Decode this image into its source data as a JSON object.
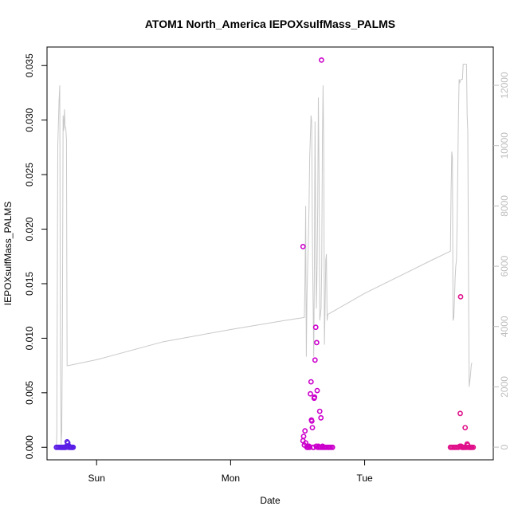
{
  "chart_data": {
    "type": "scatter",
    "title": "ATOM1 North_America IEPOXsulfMass_PALMS",
    "xlabel": "Date",
    "ylabel": "IEPOXsulfMass_PALMS",
    "x_ticks": [
      {
        "x": 1.0,
        "label": "Sun"
      },
      {
        "x": 2.0,
        "label": "Mon"
      },
      {
        "x": 3.0,
        "label": "Tue"
      }
    ],
    "xlim": [
      0.63,
      3.96
    ],
    "ylim": [
      -0.00115,
      0.0367
    ],
    "y_ticks": [
      0.0,
      0.005,
      0.01,
      0.015,
      0.02,
      0.025,
      0.03,
      0.035
    ],
    "y_tick_labels": [
      "0.000",
      "0.005",
      "0.010",
      "0.015",
      "0.020",
      "0.025",
      "0.030",
      "0.035"
    ],
    "y2lim": [
      -420,
      13270
    ],
    "y2_ticks": [
      0,
      2000,
      4000,
      6000,
      8000,
      10000,
      12000
    ],
    "y2_tick_labels": [
      "0",
      "2000",
      "4000",
      "6000",
      "8000",
      "10000",
      "12000"
    ],
    "grid": false,
    "series": [
      {
        "color": "#5a1ee6",
        "points": [
          [
            0.7,
            0
          ],
          [
            0.71,
            0
          ],
          [
            0.72,
            0
          ],
          [
            0.73,
            0
          ],
          [
            0.735,
            0
          ],
          [
            0.74,
            0
          ],
          [
            0.745,
            0
          ],
          [
            0.75,
            0
          ],
          [
            0.755,
            0
          ],
          [
            0.76,
            0
          ],
          [
            0.765,
            0
          ],
          [
            0.77,
            0
          ],
          [
            0.775,
            0.0001
          ],
          [
            0.78,
            0.0005
          ],
          [
            0.785,
            0.0004
          ],
          [
            0.79,
            0
          ],
          [
            0.795,
            0.0001
          ],
          [
            0.8,
            0
          ],
          [
            0.805,
            0
          ],
          [
            0.81,
            0
          ],
          [
            0.815,
            0
          ],
          [
            0.82,
            0
          ],
          [
            0.825,
            0
          ]
        ]
      },
      {
        "color": "#cc00cc",
        "points": [
          [
            2.54,
            0.0184
          ],
          [
            2.54,
            0.0006
          ],
          [
            2.545,
            0.001
          ],
          [
            2.55,
            0.0002
          ],
          [
            2.555,
            0.0015
          ],
          [
            2.56,
            0.0004
          ],
          [
            2.57,
            0
          ],
          [
            2.575,
            0
          ],
          [
            2.58,
            0
          ],
          [
            2.585,
            0.0001
          ],
          [
            2.59,
            0
          ],
          [
            2.595,
            0.0049
          ],
          [
            2.6,
            0.006
          ],
          [
            2.603,
            0.0025
          ],
          [
            2.606,
            0.0024
          ],
          [
            2.61,
            0.0018
          ],
          [
            2.615,
            0
          ],
          [
            2.62,
            0
          ],
          [
            2.623,
            0.0045
          ],
          [
            2.626,
            0.0046
          ],
          [
            2.63,
            0.008
          ],
          [
            2.635,
            0.011
          ],
          [
            2.638,
            0.0001
          ],
          [
            2.642,
            0.0096
          ],
          [
            2.646,
            0.0052
          ],
          [
            2.65,
            0
          ],
          [
            2.655,
            0.0001
          ],
          [
            2.66,
            0
          ],
          [
            2.665,
            0.0033
          ],
          [
            2.67,
            0
          ],
          [
            2.674,
            0.0027
          ],
          [
            2.678,
            0.0355
          ],
          [
            2.682,
            0
          ],
          [
            2.686,
            0.0001
          ],
          [
            2.69,
            0
          ],
          [
            2.7,
            0
          ],
          [
            2.71,
            0
          ],
          [
            2.72,
            0
          ],
          [
            2.73,
            0
          ],
          [
            2.74,
            0
          ],
          [
            2.75,
            0
          ],
          [
            2.76,
            0
          ]
        ]
      },
      {
        "color": "#e0108a",
        "points": [
          [
            3.64,
            0
          ],
          [
            3.65,
            0
          ],
          [
            3.66,
            0
          ],
          [
            3.67,
            0
          ],
          [
            3.68,
            0
          ],
          [
            3.69,
            0
          ],
          [
            3.7,
            0
          ],
          [
            3.71,
            0.0001
          ],
          [
            3.713,
            0.0031
          ],
          [
            3.716,
            0.0138
          ],
          [
            3.72,
            0.0001
          ],
          [
            3.725,
            0
          ],
          [
            3.73,
            0
          ],
          [
            3.735,
            0
          ],
          [
            3.74,
            0
          ],
          [
            3.745,
            0
          ],
          [
            3.75,
            0.0018
          ],
          [
            3.755,
            0
          ],
          [
            3.76,
            0
          ],
          [
            3.765,
            0.0003
          ],
          [
            3.77,
            0.0002
          ],
          [
            3.775,
            0
          ],
          [
            3.78,
            0
          ],
          [
            3.785,
            0
          ],
          [
            3.79,
            0
          ],
          [
            3.795,
            0
          ],
          [
            3.8,
            0
          ],
          [
            3.81,
            0
          ]
        ]
      }
    ],
    "line_series": {
      "color": "#c8c8c8",
      "axis": "right",
      "points": [
        [
          0.7,
          0
        ],
        [
          0.703,
          500
        ],
        [
          0.71,
          10000
        ],
        [
          0.72,
          11500
        ],
        [
          0.725,
          12000
        ],
        [
          0.73,
          3000
        ],
        [
          0.735,
          100
        ],
        [
          0.74,
          500
        ],
        [
          0.745,
          4000
        ],
        [
          0.75,
          11000
        ],
        [
          0.755,
          10500
        ],
        [
          0.76,
          11200
        ],
        [
          0.765,
          10600
        ],
        [
          0.77,
          10600
        ],
        [
          0.775,
          10200
        ],
        [
          0.78,
          2700
        ],
        [
          0.785,
          2700
        ],
        [
          1.0,
          2900
        ],
        [
          1.5,
          3500
        ],
        [
          2.0,
          3900
        ],
        [
          2.4,
          4200
        ],
        [
          2.55,
          4300
        ],
        [
          2.555,
          5500
        ],
        [
          2.56,
          8000
        ],
        [
          2.562,
          5500
        ],
        [
          2.565,
          3000
        ],
        [
          2.57,
          5000
        ],
        [
          2.575,
          6000
        ],
        [
          2.58,
          6800
        ],
        [
          2.585,
          8000
        ],
        [
          2.59,
          9600
        ],
        [
          2.6,
          11000
        ],
        [
          2.605,
          10800
        ],
        [
          2.61,
          7000
        ],
        [
          2.615,
          5000
        ],
        [
          2.62,
          3000
        ],
        [
          2.625,
          6000
        ],
        [
          2.63,
          10800
        ],
        [
          2.635,
          7000
        ],
        [
          2.64,
          4600
        ],
        [
          2.645,
          6000
        ],
        [
          2.65,
          8000
        ],
        [
          2.655,
          11600
        ],
        [
          2.66,
          9000
        ],
        [
          2.665,
          4200
        ],
        [
          2.67,
          4400
        ],
        [
          2.675,
          4600
        ],
        [
          2.68,
          6000
        ],
        [
          2.685,
          10200
        ],
        [
          2.69,
          12000
        ],
        [
          2.695,
          9600
        ],
        [
          2.7,
          3400
        ],
        [
          2.705,
          4600
        ],
        [
          2.71,
          6200
        ],
        [
          2.715,
          6400
        ],
        [
          2.72,
          4200
        ],
        [
          2.725,
          4400
        ],
        [
          3.0,
          5100
        ],
        [
          3.5,
          6200
        ],
        [
          3.64,
          6500
        ],
        [
          3.645,
          8400
        ],
        [
          3.65,
          9800
        ],
        [
          3.655,
          9600
        ],
        [
          3.66,
          4200
        ],
        [
          3.665,
          4300
        ],
        [
          3.67,
          4800
        ],
        [
          3.675,
          5600
        ],
        [
          3.68,
          6000
        ],
        [
          3.685,
          6200
        ],
        [
          3.69,
          7400
        ],
        [
          3.7,
          11000
        ],
        [
          3.705,
          12200
        ],
        [
          3.71,
          12100
        ],
        [
          3.72,
          12200
        ],
        [
          3.725,
          12200
        ],
        [
          3.73,
          12200
        ],
        [
          3.735,
          12700
        ],
        [
          3.74,
          12700
        ],
        [
          3.75,
          12700
        ],
        [
          3.755,
          12700
        ],
        [
          3.76,
          12700
        ],
        [
          3.765,
          11000
        ],
        [
          3.77,
          10500
        ],
        [
          3.775,
          5600
        ],
        [
          3.78,
          2000
        ],
        [
          3.785,
          2200
        ],
        [
          3.79,
          2400
        ],
        [
          3.795,
          2700
        ],
        [
          3.8,
          2800
        ]
      ]
    }
  }
}
